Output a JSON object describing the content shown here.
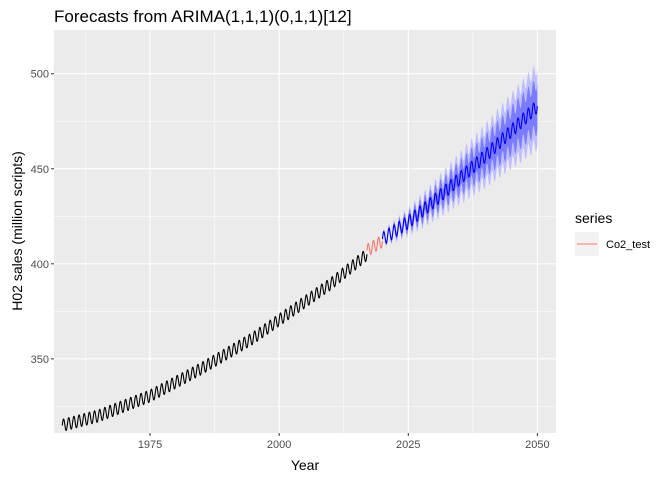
{
  "chart_data": {
    "type": "line",
    "title": "Forecasts from ARIMA(1,1,1)(0,1,1)[12]",
    "xlabel": "Year",
    "ylabel": "H02 sales (million scripts)",
    "xlim": [
      1956.4,
      2053.6
    ],
    "ylim": [
      311,
      523
    ],
    "x_ticks": [
      1975,
      2000,
      2025,
      2050
    ],
    "x_tick_labels": [
      "1975",
      "2000",
      "2025",
      "2050"
    ],
    "y_ticks": [
      350,
      400,
      450,
      500
    ],
    "y_tick_labels": [
      "350",
      "400",
      "450",
      "500"
    ],
    "grid": true,
    "legend": {
      "title": "series",
      "placement": "right",
      "entries": [
        {
          "name": "Co2_test",
          "color": "#F8766D"
        }
      ]
    },
    "series": [
      {
        "name": "observed",
        "color": "#000000",
        "x_start": 1958.0,
        "x_end": 2017.0,
        "base": [
          [
            1958.0,
            315.0
          ],
          [
            1965.0,
            320.0
          ],
          [
            1975.0,
            330.5
          ],
          [
            1985.0,
            345.0
          ],
          [
            1995.0,
            361.0
          ],
          [
            2005.0,
            380.0
          ],
          [
            2010.0,
            389.5
          ],
          [
            2017.0,
            405.0
          ]
        ],
        "seasonal_amplitude": 3.2
      },
      {
        "name": "Co2_test",
        "color": "#F8766D",
        "x_start": 2017.0,
        "x_end": 2020.0,
        "base": [
          [
            2017.0,
            407.0
          ],
          [
            2020.0,
            412.0
          ]
        ],
        "seasonal_amplitude": 3.3
      },
      {
        "name": "forecast",
        "color": "#0000FF",
        "x_start": 2020.0,
        "x_end": 2050.0,
        "base": [
          [
            2020.0,
            413.0
          ],
          [
            2025.0,
            422.0
          ],
          [
            2030.0,
            433.0
          ],
          [
            2040.0,
            457.0
          ],
          [
            2050.0,
            483.0
          ]
        ],
        "seasonal_amplitude": 3.5
      }
    ],
    "intervals": {
      "x_start": 2020.0,
      "x_end": 2050.0,
      "band_80_halfwidth": [
        [
          2020.0,
          0.8
        ],
        [
          2050.0,
          12.0
        ]
      ],
      "band_95_halfwidth": [
        [
          2020.0,
          1.3
        ],
        [
          2050.0,
          20.0
        ]
      ],
      "color_80": "#7B7BFF",
      "color_95": "#BDBDFF"
    },
    "colors": {
      "panel_background": "#EBEBEB",
      "grid_major": "#FFFFFF",
      "legend_key_background": "#F2F2F2"
    }
  }
}
